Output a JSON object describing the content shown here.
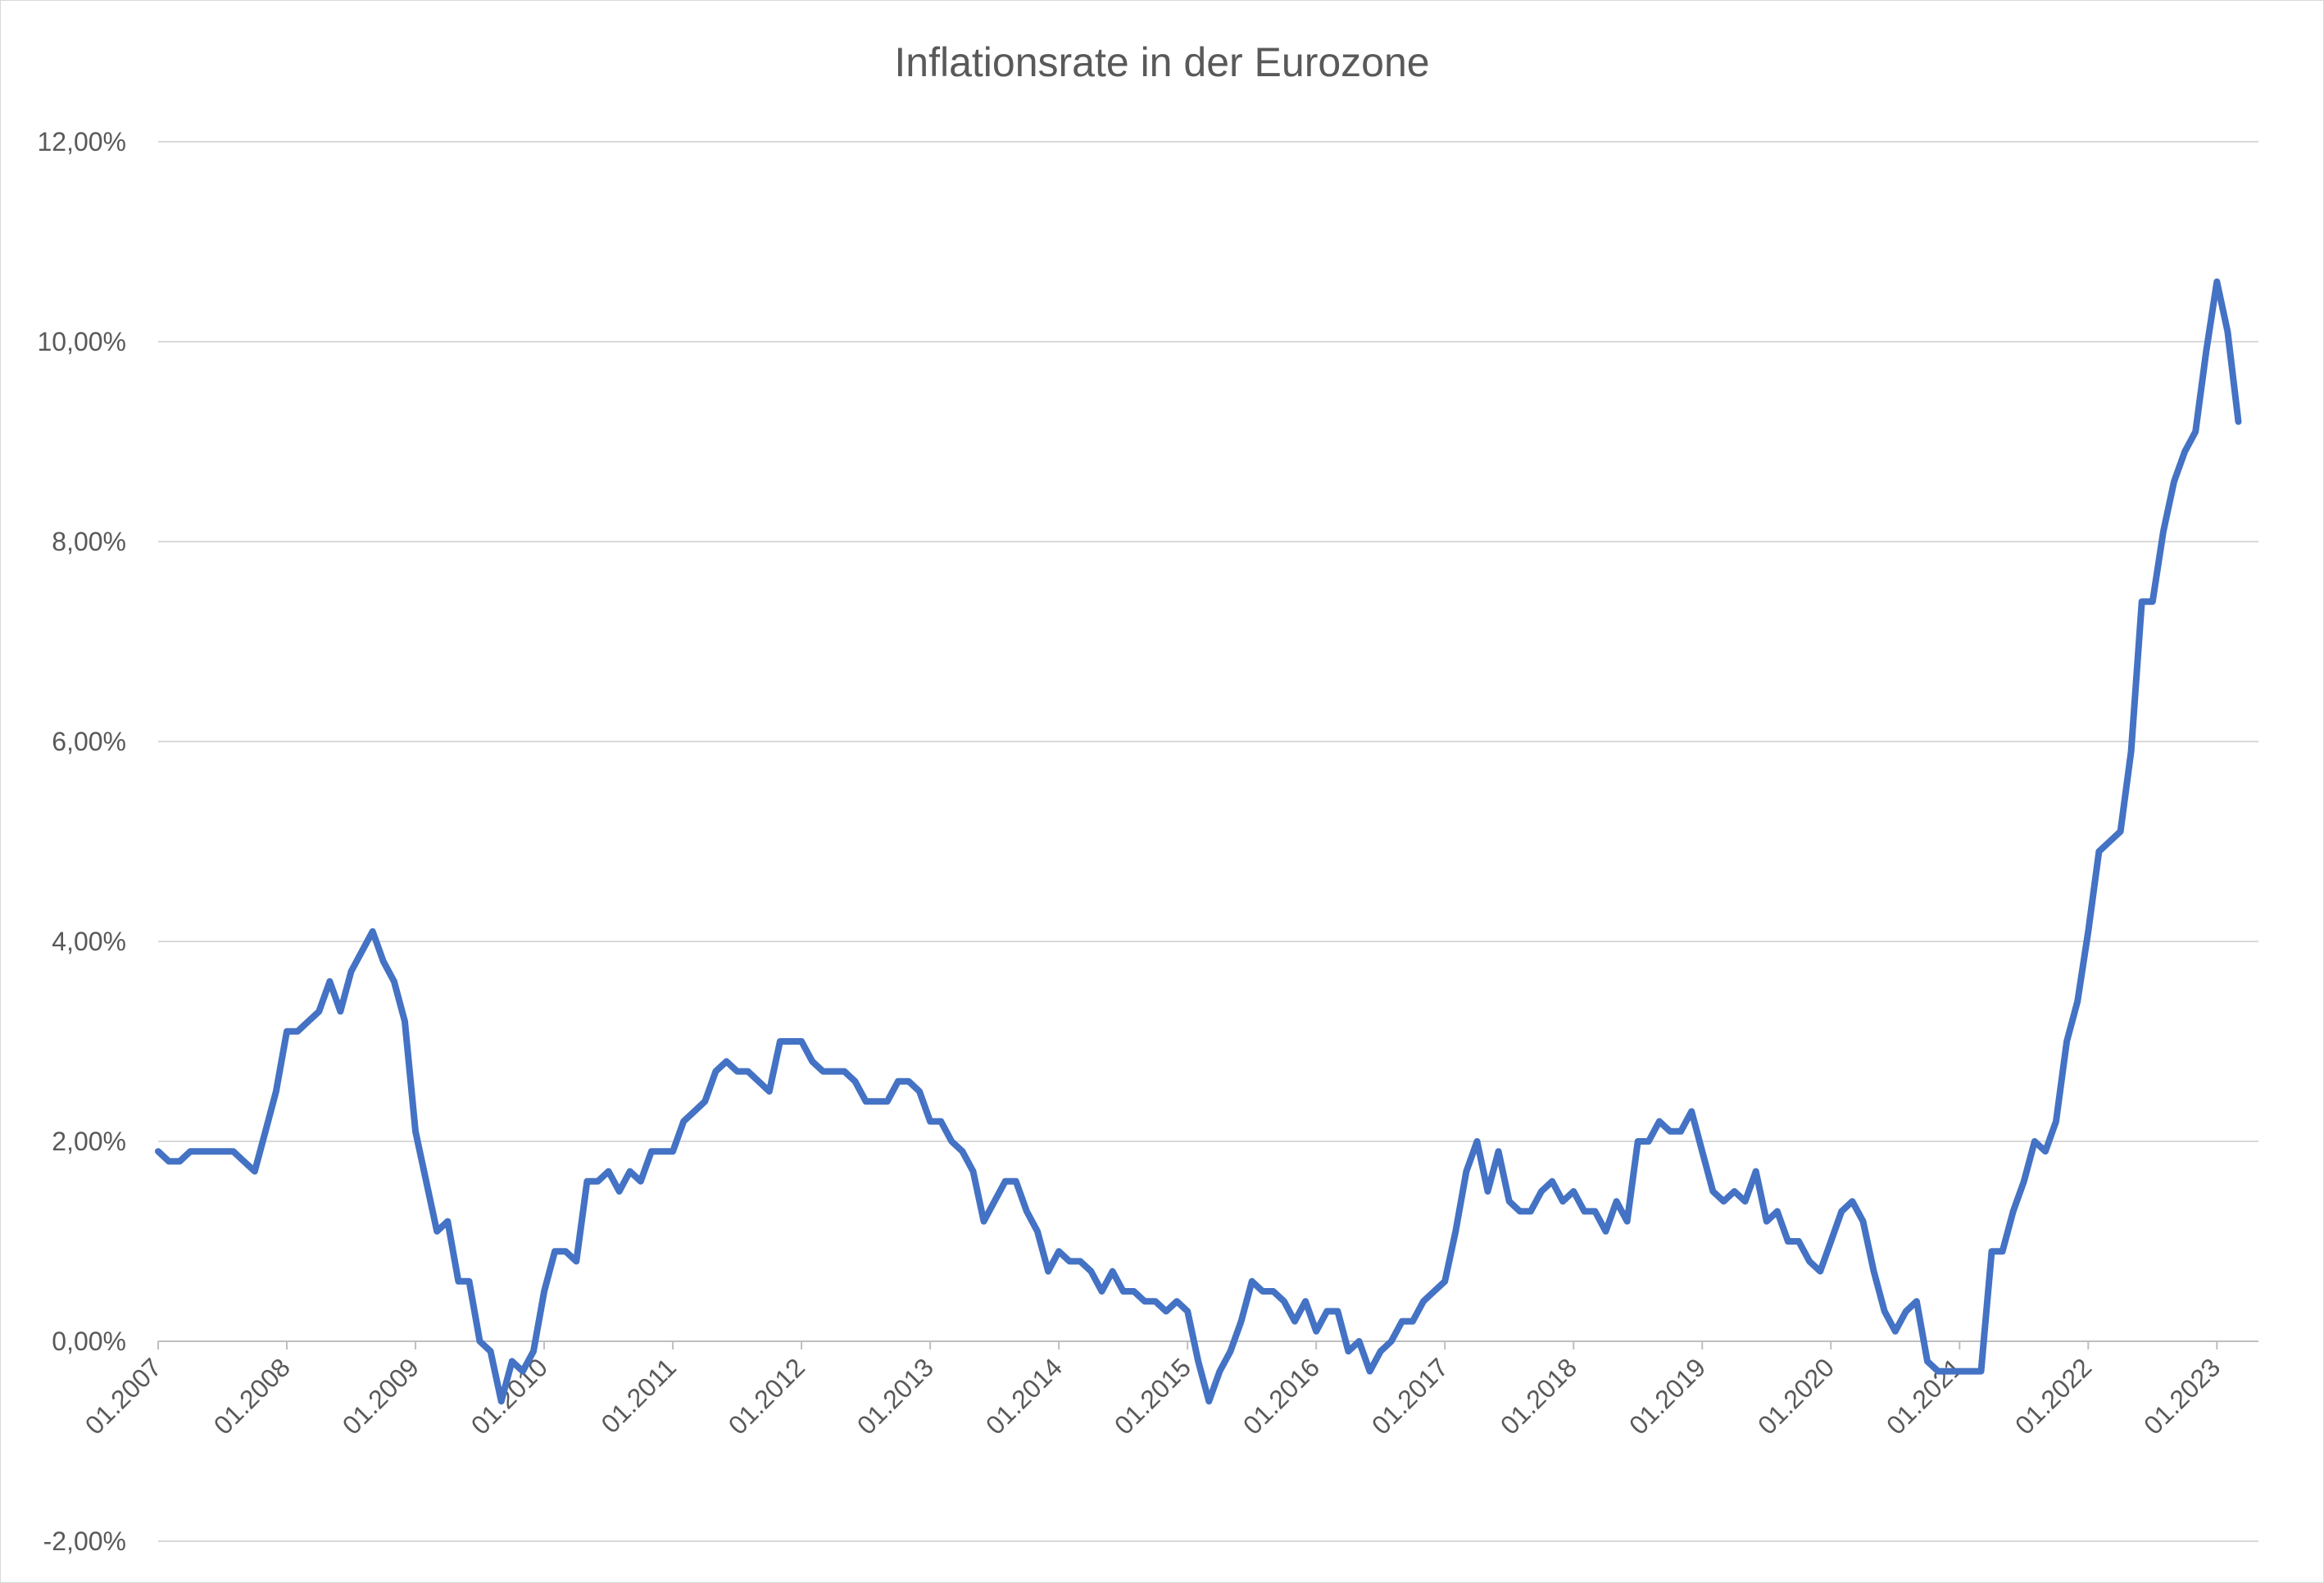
{
  "chart_data": {
    "type": "line",
    "title": "Inflationsrate in der Eurozone",
    "xlabel": "",
    "ylabel": "",
    "ylim": [
      -2,
      12
    ],
    "ytick_values": [
      -2,
      0,
      2,
      4,
      6,
      8,
      10,
      12
    ],
    "ytick_labels": [
      "-2,00%",
      "0,00%",
      "2,00%",
      "4,00%",
      "6,00%",
      "8,00%",
      "10,00%",
      "12,00%"
    ],
    "xtick_labels": [
      "01.2007",
      "01.2008",
      "01.2009",
      "01.2010",
      "01.2011",
      "01.2012",
      "01.2013",
      "01.2014",
      "01.2015",
      "01.2016",
      "01.2017",
      "01.2018",
      "01.2019",
      "01.2020",
      "01.2021",
      "01.2022",
      "01.2023"
    ],
    "grid": true,
    "legend": "none",
    "x_start": "01.2007",
    "x_step": "1 month",
    "series": [
      {
        "color": "#4472c4",
        "values": [
          1.9,
          1.8,
          1.8,
          1.9,
          1.9,
          1.9,
          1.9,
          1.9,
          1.8,
          1.7,
          2.1,
          2.5,
          3.1,
          3.1,
          3.2,
          3.3,
          3.6,
          3.3,
          3.7,
          3.9,
          4.1,
          3.8,
          3.6,
          3.2,
          2.1,
          1.6,
          1.1,
          1.2,
          0.6,
          0.6,
          0.0,
          -0.1,
          -0.6,
          -0.2,
          -0.3,
          -0.1,
          0.5,
          0.9,
          0.9,
          0.8,
          1.6,
          1.6,
          1.7,
          1.5,
          1.7,
          1.6,
          1.9,
          1.9,
          1.9,
          2.2,
          2.3,
          2.4,
          2.7,
          2.8,
          2.7,
          2.7,
          2.6,
          2.5,
          3.0,
          3.0,
          3.0,
          2.8,
          2.7,
          2.7,
          2.7,
          2.6,
          2.4,
          2.4,
          2.4,
          2.6,
          2.6,
          2.5,
          2.2,
          2.2,
          2.0,
          1.9,
          1.7,
          1.2,
          1.4,
          1.6,
          1.6,
          1.3,
          1.1,
          0.7,
          0.9,
          0.8,
          0.8,
          0.7,
          0.5,
          0.7,
          0.5,
          0.5,
          0.4,
          0.4,
          0.3,
          0.4,
          0.3,
          -0.2,
          -0.6,
          -0.3,
          -0.1,
          0.2,
          0.6,
          0.5,
          0.5,
          0.4,
          0.2,
          0.4,
          0.1,
          0.3,
          0.3,
          -0.1,
          0.0,
          -0.3,
          -0.1,
          0.0,
          0.2,
          0.2,
          0.4,
          0.5,
          0.6,
          1.1,
          1.7,
          2.0,
          1.5,
          1.9,
          1.4,
          1.3,
          1.3,
          1.5,
          1.6,
          1.4,
          1.5,
          1.3,
          1.3,
          1.1,
          1.4,
          1.2,
          2.0,
          2.0,
          2.2,
          2.1,
          2.1,
          2.3,
          1.9,
          1.5,
          1.4,
          1.5,
          1.4,
          1.7,
          1.2,
          1.3,
          1.0,
          1.0,
          0.8,
          0.7,
          1.0,
          1.3,
          1.4,
          1.2,
          0.7,
          0.3,
          0.1,
          0.3,
          0.4,
          -0.2,
          -0.3,
          -0.3,
          -0.3,
          -0.3,
          -0.3,
          0.9,
          0.9,
          1.3,
          1.6,
          2.0,
          1.9,
          2.2,
          3.0,
          3.4,
          4.1,
          4.9,
          5.0,
          5.1,
          5.9,
          7.4,
          7.4,
          8.1,
          8.6,
          8.9,
          9.1,
          9.9,
          10.6,
          10.1,
          9.2
        ]
      }
    ]
  }
}
